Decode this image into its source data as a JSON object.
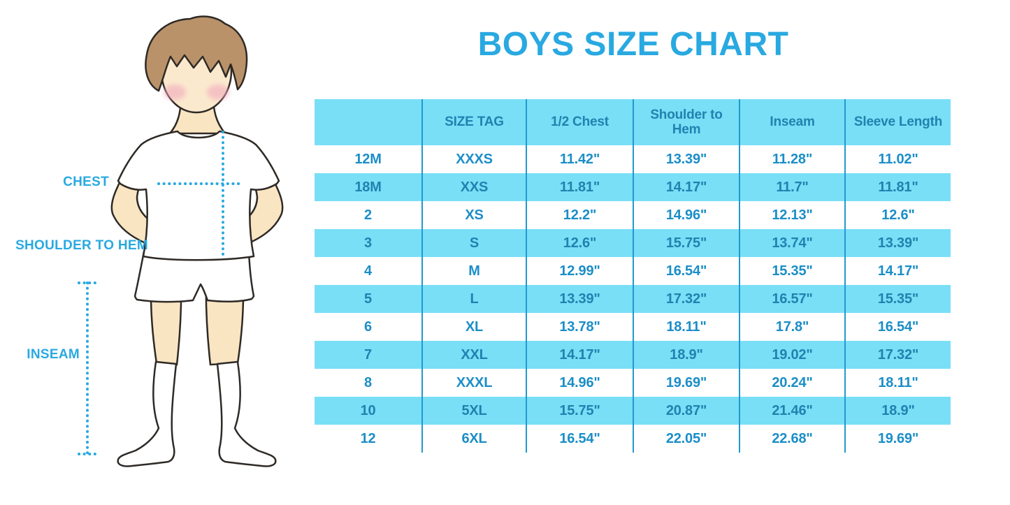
{
  "title": "BOYS SIZE CHART",
  "figure": {
    "description": "boy-with-measurement-lines",
    "labels": {
      "chest": "CHEST",
      "shoulder_to_hem": "SHOULDER TO HEM",
      "inseam": "INSEAM"
    }
  },
  "chart_data": {
    "type": "table",
    "title": "BOYS SIZE CHART",
    "columns": [
      "",
      "SIZE TAG",
      "1/2 Chest",
      "Shoulder to Hem",
      "Inseam",
      "Sleeve Length"
    ],
    "rows": [
      [
        "12M",
        "XXXS",
        "11.42\"",
        "13.39\"",
        "11.28\"",
        "11.02\""
      ],
      [
        "18M",
        "XXS",
        "11.81\"",
        "14.17\"",
        "11.7\"",
        "11.81\""
      ],
      [
        "2",
        "XS",
        "12.2\"",
        "14.96\"",
        "12.13\"",
        "12.6\""
      ],
      [
        "3",
        "S",
        "12.6\"",
        "15.75\"",
        "13.74\"",
        "13.39\""
      ],
      [
        "4",
        "M",
        "12.99\"",
        "16.54\"",
        "15.35\"",
        "14.17\""
      ],
      [
        "5",
        "L",
        "13.39\"",
        "17.32\"",
        "16.57\"",
        "15.35\""
      ],
      [
        "6",
        "XL",
        "13.78\"",
        "18.11\"",
        "17.8\"",
        "16.54\""
      ],
      [
        "7",
        "XXL",
        "14.17\"",
        "18.9\"",
        "19.02\"",
        "17.32\""
      ],
      [
        "8",
        "XXXL",
        "14.96\"",
        "19.69\"",
        "20.24\"",
        "18.11\""
      ],
      [
        "10",
        "5XL",
        "15.75\"",
        "20.87\"",
        "21.46\"",
        "18.9\""
      ],
      [
        "12",
        "6XL",
        "16.54\"",
        "22.05\"",
        "22.68\"",
        "19.69\""
      ]
    ],
    "layout": {
      "grid": "vertical-dividers-only",
      "row_striping": "white and light-blue alternating, header light-blue",
      "legend_position": "none"
    }
  },
  "colors": {
    "accent_blue": "#29A9E1",
    "table_stripe_blue": "#79DFF7",
    "table_divider_blue": "#2299CE",
    "header_text_blue": "#1F83AF",
    "cell_text_blue": "#1B8EC7"
  }
}
